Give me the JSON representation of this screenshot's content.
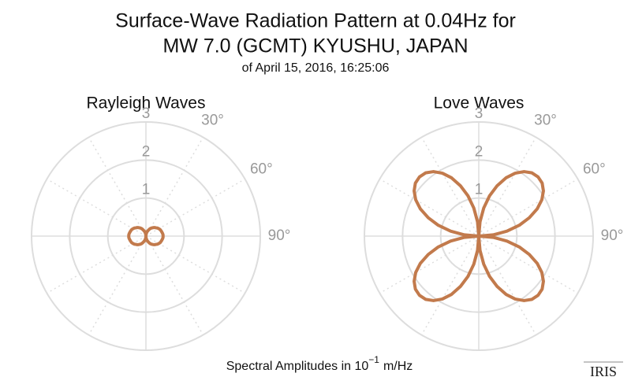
{
  "header": {
    "title_lines": [
      "Surface-Wave Radiation Pattern at 0.04Hz for",
      "MW 7.0 (GCMT) KYUSHU, JAPAN"
    ],
    "subtitle": "of April 15, 2016, 16:25:06"
  },
  "footer": {
    "prefix": "Spectral Amplitudes in 10",
    "exponent": "−1",
    "suffix": "m/Hz"
  },
  "logo": "IRIS",
  "chart_data": [
    {
      "type": "polar",
      "title": "Rayleigh Waves",
      "color": "#c27a4c",
      "theta": [
        0,
        5,
        10,
        15,
        20,
        25,
        30,
        35,
        40,
        45,
        50,
        55,
        60,
        65,
        70,
        75,
        80,
        85,
        90,
        95,
        100,
        105,
        110,
        115,
        120,
        125,
        130,
        135,
        140,
        145,
        150,
        155,
        160,
        165,
        170,
        175,
        180,
        185,
        190,
        195,
        200,
        205,
        210,
        215,
        220,
        225,
        230,
        235,
        240,
        245,
        250,
        255,
        260,
        265,
        270,
        275,
        280,
        285,
        290,
        295,
        300,
        305,
        310,
        315,
        320,
        325,
        330,
        335,
        340,
        345,
        350,
        355
      ],
      "r": [
        0,
        0.04,
        0.08,
        0.12,
        0.15,
        0.19,
        0.23,
        0.26,
        0.29,
        0.32,
        0.34,
        0.37,
        0.39,
        0.41,
        0.42,
        0.43,
        0.44,
        0.45,
        0.45,
        0.45,
        0.44,
        0.43,
        0.42,
        0.41,
        0.39,
        0.37,
        0.34,
        0.32,
        0.29,
        0.26,
        0.23,
        0.19,
        0.15,
        0.12,
        0.08,
        0.04,
        0,
        0.04,
        0.08,
        0.12,
        0.15,
        0.19,
        0.23,
        0.26,
        0.29,
        0.32,
        0.34,
        0.37,
        0.39,
        0.41,
        0.42,
        0.43,
        0.44,
        0.45,
        0.45,
        0.45,
        0.44,
        0.43,
        0.42,
        0.41,
        0.39,
        0.37,
        0.34,
        0.32,
        0.29,
        0.26,
        0.23,
        0.19,
        0.15,
        0.12,
        0.08,
        0.04
      ],
      "rlim": [
        0,
        3
      ],
      "rticks": [
        1,
        2,
        3
      ],
      "thetaticks": [
        {
          "value": 30,
          "label": "30°"
        },
        {
          "value": 60,
          "label": "60°"
        },
        {
          "value": 90,
          "label": "90°"
        }
      ]
    },
    {
      "type": "polar",
      "title": "Love Waves",
      "color": "#c27a4c",
      "theta": [
        0,
        5,
        10,
        15,
        20,
        25,
        30,
        35,
        40,
        45,
        50,
        55,
        60,
        65,
        70,
        75,
        80,
        85,
        90,
        95,
        100,
        105,
        110,
        115,
        120,
        125,
        130,
        135,
        140,
        145,
        150,
        155,
        160,
        165,
        170,
        175,
        180,
        185,
        190,
        195,
        200,
        205,
        210,
        215,
        220,
        225,
        230,
        235,
        240,
        245,
        250,
        255,
        260,
        265,
        270,
        275,
        280,
        285,
        290,
        295,
        300,
        305,
        310,
        315,
        320,
        325,
        330,
        335,
        340,
        345,
        350,
        355
      ],
      "r": [
        0,
        0.38,
        0.75,
        1.1,
        1.41,
        1.69,
        1.91,
        2.07,
        2.17,
        2.2,
        2.17,
        2.07,
        1.91,
        1.69,
        1.41,
        1.1,
        0.75,
        0.38,
        0,
        0.38,
        0.75,
        1.1,
        1.41,
        1.69,
        1.91,
        2.07,
        2.17,
        2.2,
        2.17,
        2.07,
        1.91,
        1.69,
        1.41,
        1.1,
        0.75,
        0.38,
        0,
        0.38,
        0.75,
        1.1,
        1.41,
        1.69,
        1.91,
        2.07,
        2.17,
        2.2,
        2.17,
        2.07,
        1.91,
        1.69,
        1.41,
        1.1,
        0.75,
        0.38,
        0,
        0.38,
        0.75,
        1.1,
        1.41,
        1.69,
        1.91,
        2.07,
        2.17,
        2.2,
        2.17,
        2.07,
        1.91,
        1.69,
        1.41,
        1.1,
        0.75,
        0.38
      ],
      "rlim": [
        0,
        3
      ],
      "rticks": [
        1,
        2,
        3
      ],
      "thetaticks": [
        {
          "value": 30,
          "label": "30°"
        },
        {
          "value": 60,
          "label": "60°"
        },
        {
          "value": 90,
          "label": "90°"
        }
      ]
    }
  ]
}
